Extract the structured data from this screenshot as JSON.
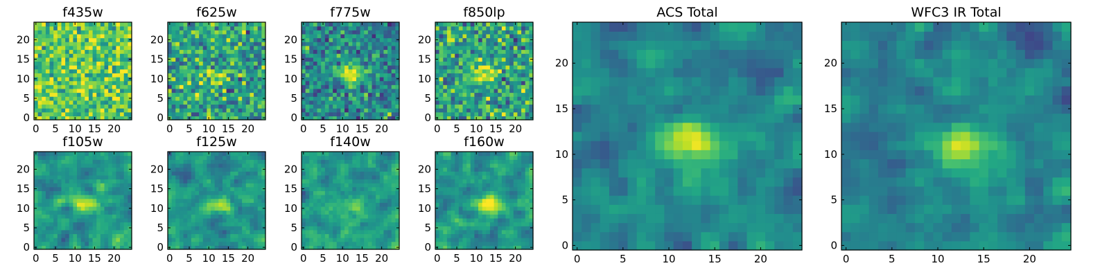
{
  "chart_data": {
    "type": "heatmap",
    "colormap": "viridis",
    "grid": false,
    "panels": [
      {
        "id": "f435w",
        "title": "f435w",
        "xlim": [
          0,
          24
        ],
        "ylim": [
          0,
          24
        ],
        "xticks": [
          0,
          5,
          10,
          15,
          20
        ],
        "yticks": [
          0,
          5,
          10,
          15,
          20
        ],
        "pattern": "noise_high",
        "blob": null
      },
      {
        "id": "f625w",
        "title": "f625w",
        "xlim": [
          0,
          24
        ],
        "ylim": [
          0,
          24
        ],
        "xticks": [
          0,
          5,
          10,
          15,
          20
        ],
        "yticks": [
          0,
          5,
          10,
          15,
          20
        ],
        "pattern": "noise_mid",
        "blob": {
          "x": 12,
          "y": 11.5,
          "amp": 0.35
        }
      },
      {
        "id": "f775w",
        "title": "f775w",
        "xlim": [
          0,
          24
        ],
        "ylim": [
          0,
          24
        ],
        "xticks": [
          0,
          5,
          10,
          15,
          20
        ],
        "yticks": [
          0,
          5,
          10,
          15,
          20
        ],
        "pattern": "noise_low",
        "blob": {
          "x": 12.5,
          "y": 11.5,
          "amp": 0.6
        }
      },
      {
        "id": "f850lp",
        "title": "f850lp",
        "xlim": [
          0,
          24
        ],
        "ylim": [
          0,
          24
        ],
        "xticks": [
          0,
          5,
          10,
          15,
          20
        ],
        "yticks": [
          0,
          5,
          10,
          15,
          20
        ],
        "pattern": "noise_mid",
        "blob": {
          "x": 12,
          "y": 11.5,
          "amp": 0.5
        }
      },
      {
        "id": "f105w",
        "title": "f105w",
        "xlim": [
          0,
          24
        ],
        "ylim": [
          0,
          24
        ],
        "xticks": [
          0,
          5,
          10,
          15,
          20
        ],
        "yticks": [
          0,
          5,
          10,
          15,
          20
        ],
        "pattern": "smooth",
        "blob": {
          "x": 12.5,
          "y": 11,
          "amp": 0.45
        }
      },
      {
        "id": "f125w",
        "title": "f125w",
        "xlim": [
          0,
          24
        ],
        "ylim": [
          0,
          24
        ],
        "xticks": [
          0,
          5,
          10,
          15,
          20
        ],
        "yticks": [
          0,
          5,
          10,
          15,
          20
        ],
        "pattern": "smooth",
        "blob": {
          "x": 12.5,
          "y": 11,
          "amp": 0.4
        }
      },
      {
        "id": "f140w",
        "title": "f140w",
        "xlim": [
          0,
          24
        ],
        "ylim": [
          0,
          24
        ],
        "xticks": [
          0,
          5,
          10,
          15,
          20
        ],
        "yticks": [
          0,
          5,
          10,
          15,
          20
        ],
        "pattern": "smooth",
        "blob": {
          "x": 12.5,
          "y": 10.5,
          "amp": 0.4
        }
      },
      {
        "id": "f160w",
        "title": "f160w",
        "xlim": [
          0,
          24
        ],
        "ylim": [
          0,
          24
        ],
        "xticks": [
          0,
          5,
          10,
          15,
          20
        ],
        "yticks": [
          0,
          5,
          10,
          15,
          20
        ],
        "pattern": "smooth",
        "blob": {
          "x": 13,
          "y": 11,
          "amp": 0.55
        }
      },
      {
        "id": "acs_total",
        "title": "ACS Total",
        "xlim": [
          0,
          24
        ],
        "ylim": [
          0,
          24
        ],
        "xticks": [
          0,
          5,
          10,
          15,
          20
        ],
        "yticks": [
          0,
          5,
          10,
          15,
          20
        ],
        "pattern": "total",
        "blob": {
          "x": 12.5,
          "y": 11.5,
          "amp": 0.55
        }
      },
      {
        "id": "wfc3_ir_total",
        "title": "WFC3 IR Total",
        "xlim": [
          0,
          24
        ],
        "ylim": [
          0,
          24
        ],
        "xticks": [
          0,
          5,
          10,
          15,
          20
        ],
        "yticks": [
          0,
          5,
          10,
          15,
          20
        ],
        "pattern": "total",
        "blob": {
          "x": 13,
          "y": 11,
          "amp": 0.55
        }
      }
    ]
  }
}
